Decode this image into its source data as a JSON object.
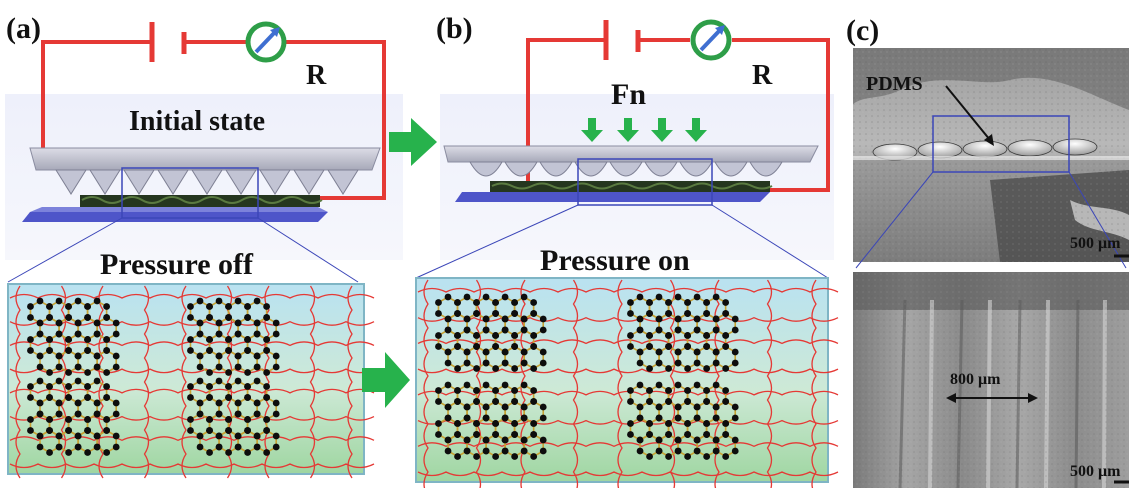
{
  "panels": {
    "a": {
      "label": "(a)",
      "resistor_label": "R",
      "state_label": "Initial state",
      "pressure_label": "Pressure off"
    },
    "b": {
      "label": "(b)",
      "force_label": "Fn",
      "resistor_label": "R",
      "pressure_label": "Pressure on"
    },
    "c": {
      "label": "(c)",
      "material_label": "PDMS",
      "top_scale": "500 μm",
      "spacing_label": "800 μm",
      "bottom_scale": "500 μm"
    }
  },
  "colors": {
    "circuit_wire": "#e53935",
    "ammeter_ring": "#2e9e48",
    "ammeter_needle": "#3f6fd1",
    "flow_arrow": "#27b24c",
    "polymer_chain": "#e53935",
    "hex_bond": "#c7a233",
    "atom": "#0d0d0d",
    "substrate": "#4e55c9",
    "box_outline": "#3b46b8"
  },
  "icons": {
    "ammeter": "ammeter-gauge-icon",
    "battery": "battery-symbol-icon",
    "arrow": "right-arrow-icon",
    "force": "down-arrow-icon"
  }
}
